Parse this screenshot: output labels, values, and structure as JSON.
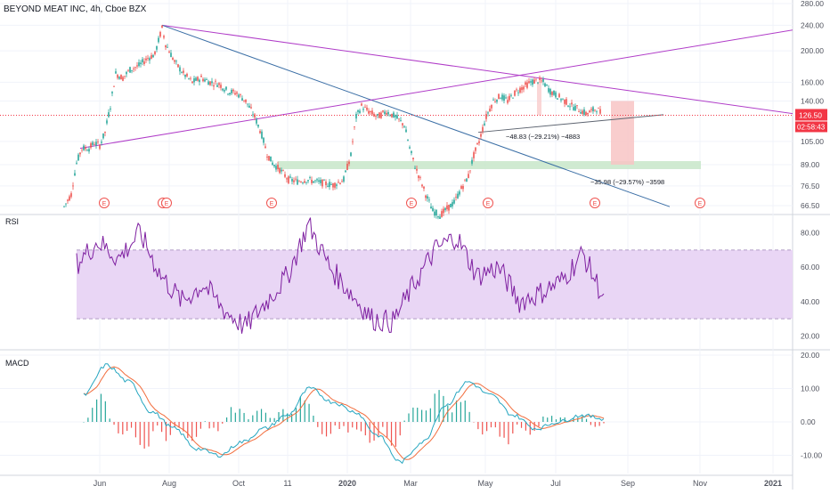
{
  "header": {
    "symbol_line": "BEYOND MEAT INC, 4h, Cboe BZX"
  },
  "panes": {
    "rsi_label": "RSI",
    "macd_label": "MACD"
  },
  "price_axis": {
    "ticks": [
      "280.00",
      "240.00",
      "200.00",
      "160.00",
      "140.00",
      "105.00",
      "89.00",
      "76.50",
      "66.50"
    ],
    "last_price": "126.50",
    "countdown": "02:58:43"
  },
  "rsi_axis": {
    "ticks": [
      "80.00",
      "60.00",
      "40.00",
      "20.00"
    ]
  },
  "macd_axis": {
    "ticks": [
      "20.00",
      "10.00",
      "0.00",
      "-10.00"
    ]
  },
  "time_axis": {
    "labels": [
      "Jun",
      "Aug",
      "Oct",
      "11",
      "2020",
      "Mar",
      "May",
      "Jul",
      "Sep",
      "Nov",
      "2021"
    ]
  },
  "annotations": {
    "measure_1": "−48.83 (−29.21%) −4883",
    "measure_2": "−35.98 (−29.57%) −3598",
    "earnings_marker": "E"
  },
  "colors": {
    "trendline_purple": "#b03cc8",
    "trendline_blue": "#3a6ea5",
    "last_price_red": "#f23645",
    "rsi_line": "#7e1fa0",
    "rsi_band": "#e9d6f5",
    "macd_line": "#26a6c0",
    "signal_line": "#f26d3d",
    "hist_up": "#26a69a",
    "hist_down": "#ef5350",
    "zone_green": "#c8e6c9",
    "zone_red": "#f8c4c4"
  },
  "chart_data": [
    {
      "type": "candlestick",
      "title": "BEYOND MEAT INC, 4h, Cboe BZX",
      "y_scale": "log",
      "y_ticks": [
        66.5,
        76.5,
        89,
        105,
        140,
        160,
        200,
        240,
        280
      ],
      "last_price": 126.5,
      "approx_path": [
        {
          "x": "May 2019",
          "close": 66
        },
        {
          "x": "early Jun 2019",
          "close": 105
        },
        {
          "x": "mid Jun 2019",
          "close": 170
        },
        {
          "x": "late Jul 2019",
          "close": 235
        },
        {
          "x": "late Aug 2019",
          "close": 160
        },
        {
          "x": "late Sep 2019",
          "close": 140
        },
        {
          "x": "late Oct 2019",
          "close": 95
        },
        {
          "x": "Nov 2019",
          "close": 80
        },
        {
          "x": "Dec 2019",
          "close": 76
        },
        {
          "x": "early Jan 2020",
          "close": 135
        },
        {
          "x": "Feb 2020",
          "close": 120
        },
        {
          "x": "early Mar 2020",
          "close": 80
        },
        {
          "x": "mid Mar 2020",
          "close": 60
        },
        {
          "x": "late Apr 2020",
          "close": 90
        },
        {
          "x": "May 2020",
          "close": 130
        },
        {
          "x": "early Jun 2020",
          "close": 160
        },
        {
          "x": "Jul 2020",
          "close": 130
        },
        {
          "x": "Aug 2020",
          "close": 126.5
        }
      ]
    },
    {
      "type": "line",
      "name": "RSI",
      "y_ticks": [
        20,
        40,
        60,
        80
      ],
      "band": [
        30,
        70
      ],
      "approx_values": [
        62,
        75,
        65,
        80,
        55,
        40,
        50,
        35,
        25,
        40,
        55,
        85,
        60,
        45,
        30,
        28,
        50,
        70,
        78,
        55,
        60,
        40,
        45,
        52,
        68,
        42
      ]
    },
    {
      "type": "line",
      "name": "MACD",
      "y_ticks": [
        -10,
        0,
        10,
        20
      ],
      "approx_values": [
        8,
        17,
        12,
        3,
        -2,
        -8,
        -10,
        -6,
        -2,
        2,
        10,
        6,
        3,
        -4,
        -12,
        -6,
        5,
        12,
        8,
        2,
        -2,
        0,
        2,
        1
      ]
    }
  ]
}
